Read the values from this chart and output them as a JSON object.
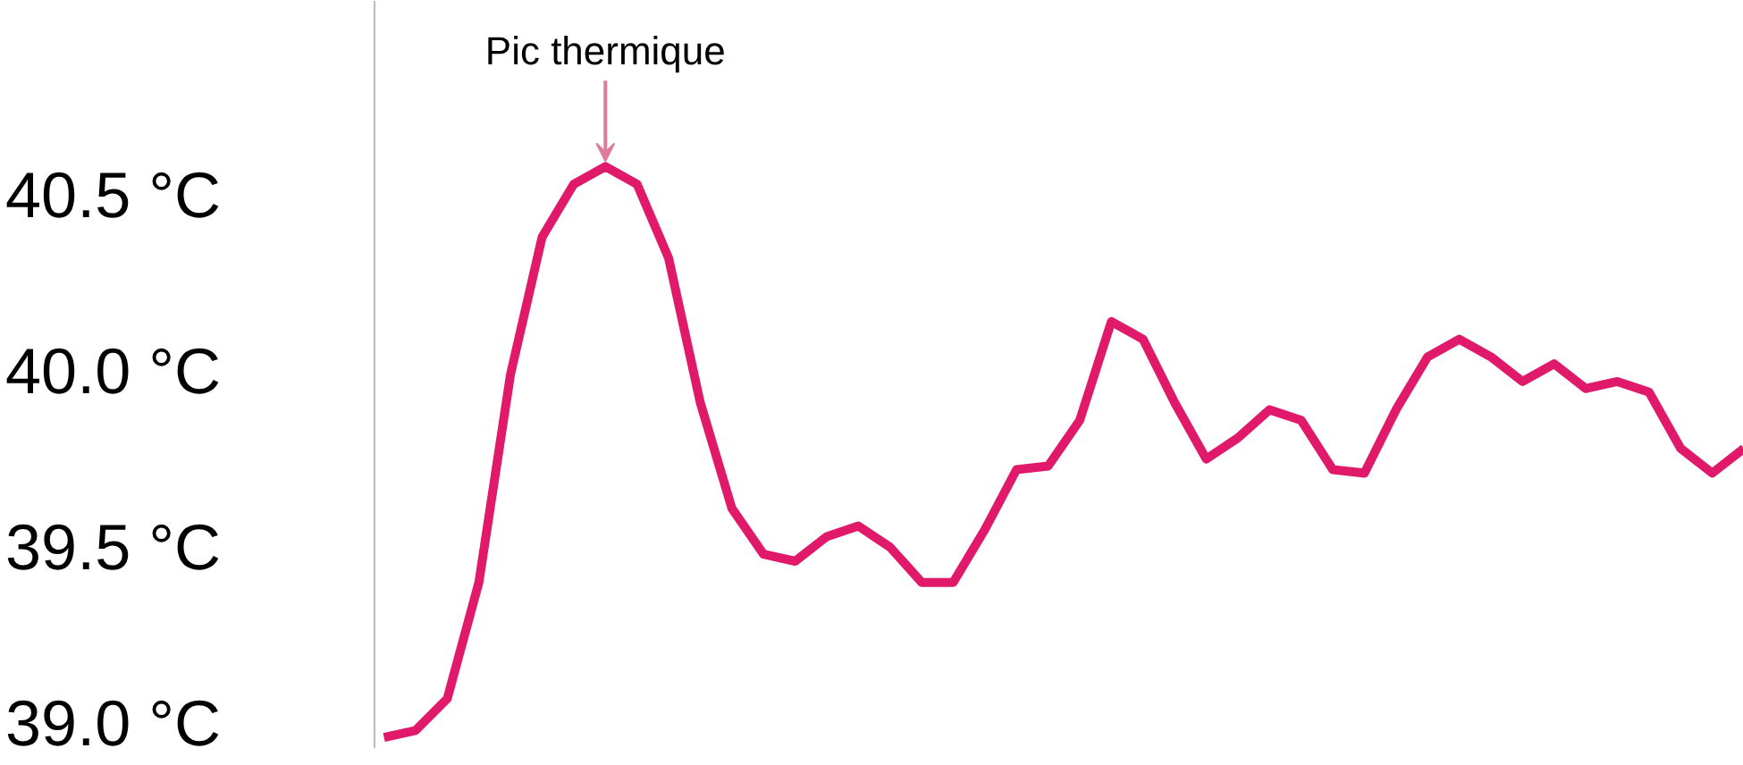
{
  "chart_data": {
    "type": "line",
    "categories": [
      null,
      null,
      null,
      null,
      null,
      null,
      null,
      null,
      null,
      null,
      null,
      null,
      null,
      null,
      null,
      null,
      null,
      null,
      null,
      null,
      null,
      null,
      null,
      null,
      null,
      null,
      null,
      null,
      null,
      null,
      null,
      null,
      null,
      null,
      null,
      null,
      null,
      null,
      null,
      null,
      null,
      null,
      null,
      null
    ],
    "series": [
      {
        "color": "#e0196a",
        "values": [
          38.96,
          38.98,
          39.07,
          39.4,
          39.99,
          40.38,
          40.53,
          40.58,
          40.53,
          40.32,
          39.91,
          39.61,
          39.48,
          39.46,
          39.53,
          39.56,
          39.5,
          39.4,
          39.4,
          39.55,
          39.72,
          39.73,
          39.86,
          40.14,
          40.09,
          39.91,
          39.75,
          39.81,
          39.89,
          39.86,
          39.72,
          39.71,
          39.89,
          40.04,
          40.09,
          40.04,
          39.97,
          40.02,
          39.95,
          39.97,
          39.94,
          39.78,
          39.71,
          39.78
        ]
      }
    ],
    "ylim": [
      38.93,
      41.05
    ],
    "yticks": [
      {
        "value": 39.0,
        "label": "39.0 °C"
      },
      {
        "value": 39.5,
        "label": "39.5 °C"
      },
      {
        "value": 40.0,
        "label": "40.0 °C"
      },
      {
        "value": 40.5,
        "label": "40.5 °C"
      }
    ],
    "tick_labels": "y",
    "grid": false,
    "marker": "none",
    "line_style": "solid",
    "annotations": [
      {
        "text": "Pic thermique",
        "y": 40.58
      }
    ]
  }
}
